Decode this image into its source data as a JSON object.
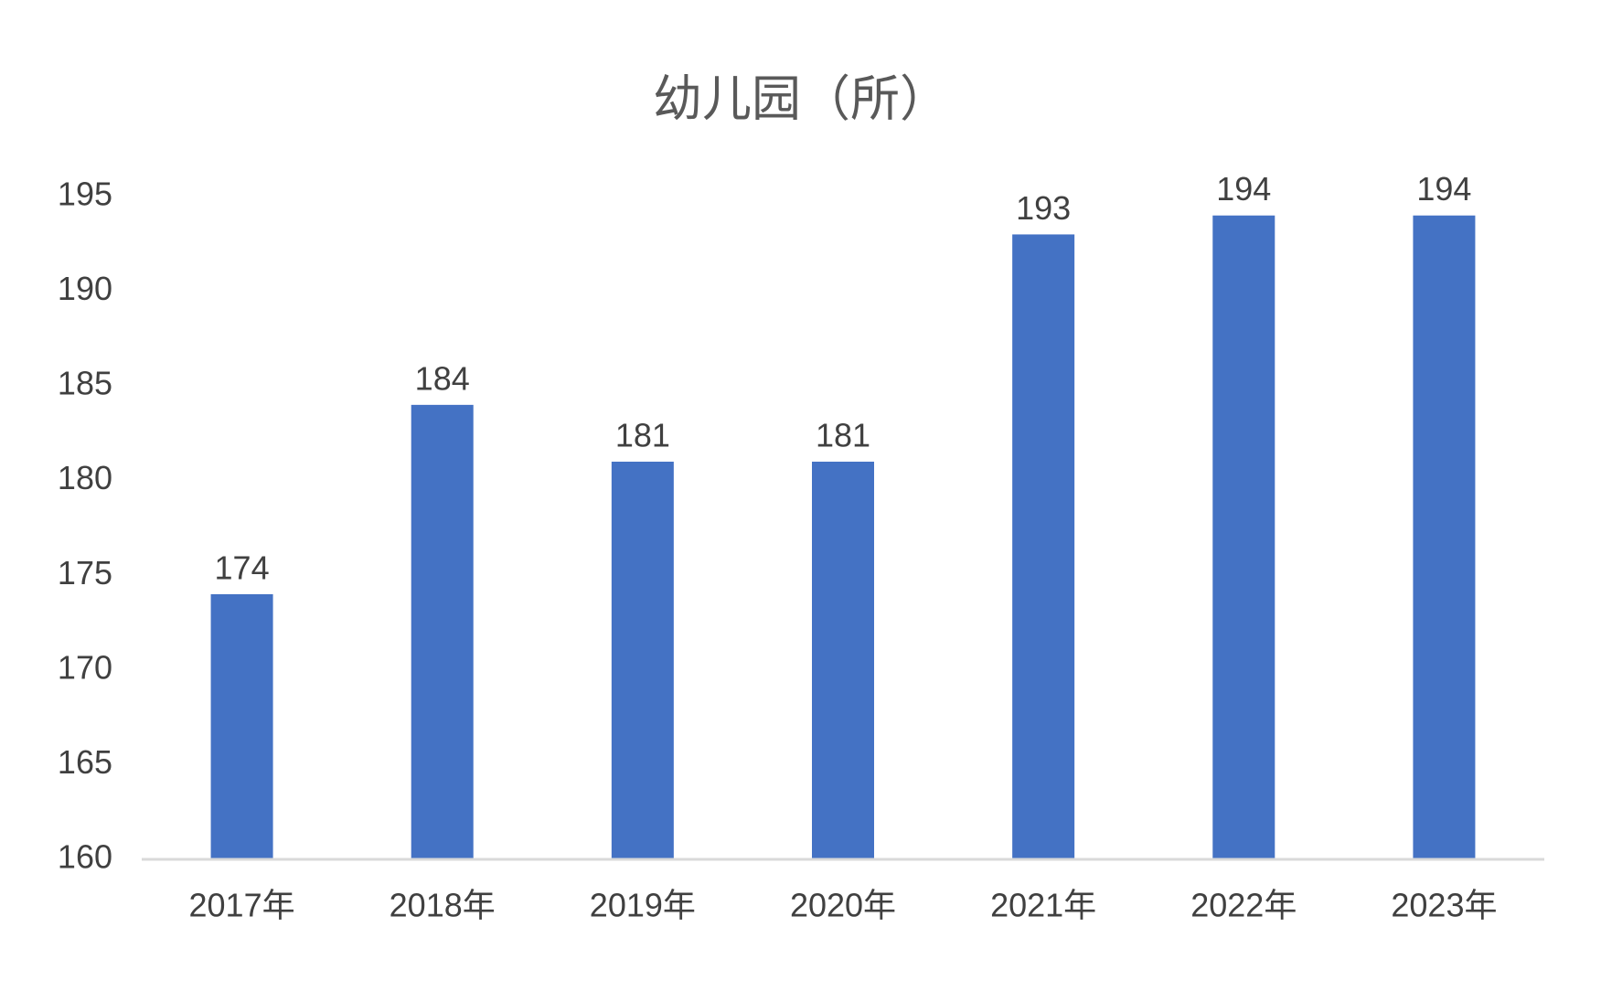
{
  "chart_data": {
    "type": "bar",
    "title": "幼儿园（所）",
    "categories": [
      "2017年",
      "2018年",
      "2019年",
      "2020年",
      "2021年",
      "2022年",
      "2023年"
    ],
    "values": [
      174,
      184,
      181,
      181,
      193,
      194,
      194
    ],
    "color": "#4472c4",
    "ylim": [
      160,
      195
    ],
    "yticks": [
      160,
      165,
      170,
      175,
      180,
      185,
      190,
      195
    ],
    "grid": false
  }
}
